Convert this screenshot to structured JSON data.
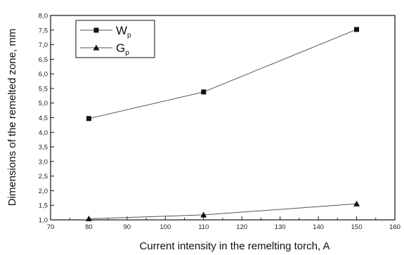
{
  "chart_data": {
    "type": "line",
    "title": "",
    "xlabel": "Current intensity in the remelting torch, A",
    "ylabel": "Dimensions of the remelted zone, mm",
    "xlim": [
      70,
      160
    ],
    "ylim": [
      1.0,
      8.0
    ],
    "x_ticks": [
      "70",
      "80",
      "90",
      "100",
      "110",
      "120",
      "130",
      "140",
      "150",
      "160"
    ],
    "y_ticks": [
      "1,0",
      "1,5",
      "2,0",
      "2,5",
      "3,0",
      "3,5",
      "4,0",
      "4,5",
      "5,0",
      "5,5",
      "6,0",
      "6,5",
      "7,0",
      "7,5",
      "8,0"
    ],
    "grid": false,
    "legend_position": "top-left",
    "series": [
      {
        "name": "W",
        "subscript": "p",
        "marker": "square",
        "x": [
          80,
          110,
          150
        ],
        "values": [
          4.47,
          5.38,
          7.52
        ]
      },
      {
        "name": "G",
        "subscript": "p",
        "marker": "triangle",
        "x": [
          80,
          110,
          150
        ],
        "values": [
          1.04,
          1.17,
          1.55
        ]
      }
    ],
    "colors": {
      "line": "#555555",
      "marker": "#111111",
      "axis": "#111111"
    }
  }
}
